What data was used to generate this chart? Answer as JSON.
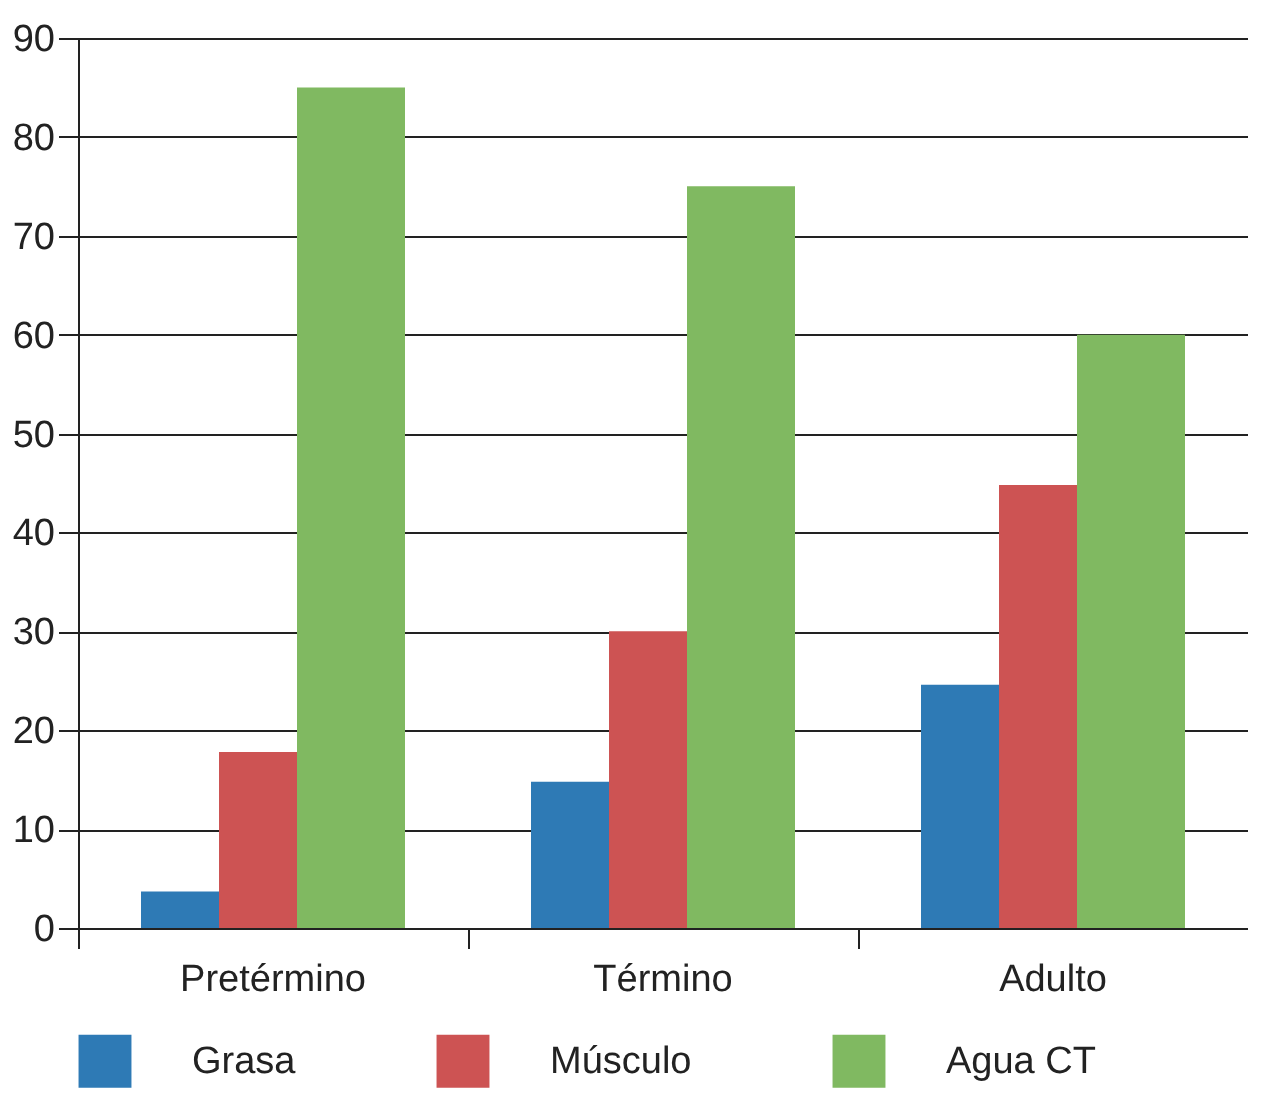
{
  "chart_data": {
    "type": "bar",
    "categories": [
      "Pretérmino",
      "Término",
      "Adulto"
    ],
    "series": [
      {
        "name": "Grasa",
        "color": "#2e7ab5",
        "values": [
          3.7,
          14.8,
          24.6
        ]
      },
      {
        "name": "Músculo",
        "color": "#cd5353",
        "values": [
          17.8,
          30,
          44.8
        ]
      },
      {
        "name": "Agua CT",
        "color": "#80b961",
        "values": [
          85,
          75,
          60
        ]
      }
    ],
    "ylim": [
      0,
      90
    ],
    "yticks": [
      0,
      10,
      20,
      30,
      40,
      50,
      60,
      70,
      80,
      90
    ],
    "grid": "y",
    "legend": "bottom"
  }
}
